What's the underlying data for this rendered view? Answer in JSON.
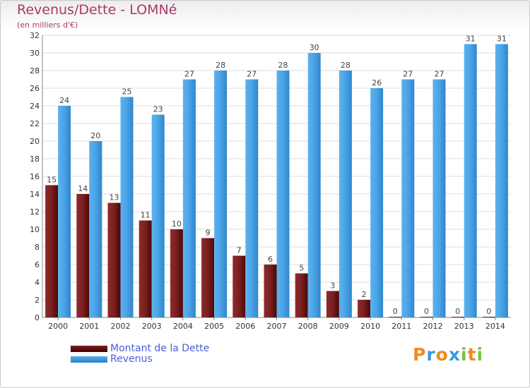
{
  "header": {
    "title": "Revenus/Dette - LOMNé",
    "subtitle": "(en milliers d'€)"
  },
  "chart_data": {
    "type": "bar",
    "categories": [
      "2000",
      "2001",
      "2002",
      "2003",
      "2004",
      "2005",
      "2006",
      "2007",
      "2008",
      "2009",
      "2010",
      "2011",
      "2012",
      "2013",
      "2014"
    ],
    "series": [
      {
        "name": "Montant de la Dette",
        "color": "#7a1f1f",
        "values": [
          15,
          14,
          13,
          11,
          10,
          9,
          7,
          6,
          5,
          3,
          2,
          0,
          0,
          0,
          0
        ]
      },
      {
        "name": "Revenus",
        "color": "#3f97dd",
        "values": [
          24,
          20,
          25,
          23,
          27,
          28,
          27,
          28,
          30,
          28,
          26,
          27,
          27,
          31,
          31
        ]
      }
    ],
    "ylim": [
      0,
      32
    ],
    "yticks": [
      0,
      2,
      4,
      6,
      8,
      10,
      12,
      14,
      16,
      18,
      20,
      22,
      24,
      26,
      28,
      30,
      32
    ],
    "grid": true,
    "legend_position": "bottom-left"
  },
  "legend": {
    "items": [
      {
        "label": "Montant de la Dette",
        "color": "#7a1f1f"
      },
      {
        "label": "Revenus",
        "color": "#3f97dd"
      }
    ]
  },
  "logo": {
    "letters": [
      "P",
      "r",
      "o",
      "x",
      "i",
      "t",
      "i"
    ],
    "colors": [
      "#f28a1c",
      "#3a9be0",
      "#f28a1c",
      "#3a9be0",
      "#7cc242",
      "#f28a1c",
      "#7cc242"
    ]
  }
}
